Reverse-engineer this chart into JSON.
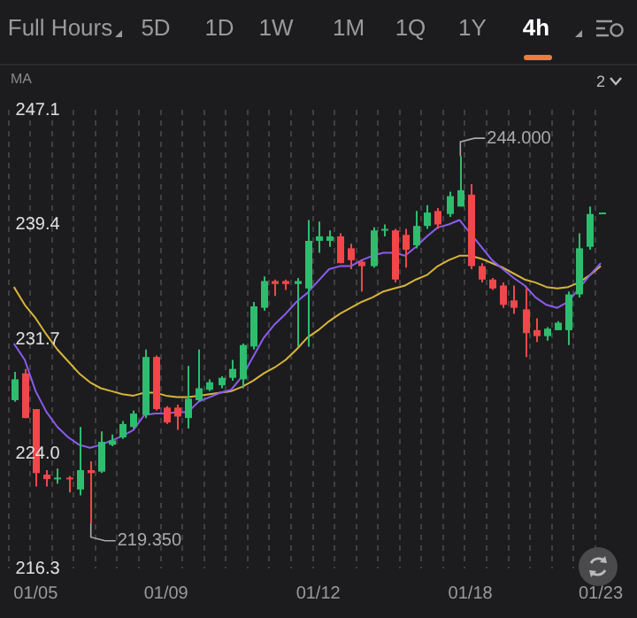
{
  "chart_data": {
    "type": "candlestick",
    "annotations": [
      "Full Hours",
      "5D",
      "1D",
      "1W",
      "1M",
      "1Q",
      "1Y",
      "4h",
      "MA",
      "2",
      "244.000",
      "219.350"
    ],
    "categories": [
      null,
      null,
      "01/05",
      null,
      null,
      null,
      null,
      null,
      null,
      null,
      null,
      null,
      null,
      null,
      "01/09",
      null,
      null,
      null,
      null,
      null,
      null,
      null,
      null,
      null,
      null,
      null,
      null,
      null,
      "01/12",
      null,
      null,
      null,
      null,
      null,
      null,
      null,
      null,
      null,
      null,
      null,
      null,
      null,
      "01/18",
      null,
      null,
      null,
      null,
      null,
      null,
      null,
      null,
      null,
      null,
      null,
      "01/23"
    ],
    "ohlc": [
      [
        227.6,
        229.5,
        227.5,
        229.0
      ],
      [
        229.4,
        229.7,
        226.4,
        226.4
      ],
      [
        227.0,
        227.0,
        221.8,
        222.7
      ],
      [
        222.6,
        222.9,
        221.8,
        222.3
      ],
      [
        222.3,
        223.0,
        222.0,
        222.4
      ],
      [
        222.4,
        222.5,
        221.4,
        222.3
      ],
      [
        221.6,
        225.8,
        221.2,
        222.9
      ],
      [
        222.9,
        223.5,
        219.35,
        222.7
      ],
      [
        222.8,
        225.5,
        222.7,
        224.8
      ],
      [
        224.6,
        225.3,
        224.5,
        224.9
      ],
      [
        225.1,
        226.2,
        225.0,
        226.0
      ],
      [
        225.8,
        226.9,
        225.7,
        226.7
      ],
      [
        226.6,
        231.0,
        226.4,
        230.5
      ],
      [
        230.5,
        230.6,
        226.9,
        227.0
      ],
      [
        227.1,
        227.2,
        226.0,
        226.1
      ],
      [
        227.1,
        227.3,
        225.6,
        226.5
      ],
      [
        226.4,
        229.9,
        225.7,
        227.7
      ],
      [
        227.6,
        231.0,
        227.5,
        228.4
      ],
      [
        228.3,
        229.0,
        228.2,
        228.8
      ],
      [
        228.6,
        229.2,
        228.4,
        229.1
      ],
      [
        229.1,
        230.3,
        228.9,
        229.7
      ],
      [
        229.0,
        231.4,
        228.4,
        231.3
      ],
      [
        231.2,
        234.2,
        231.0,
        233.9
      ],
      [
        233.8,
        235.9,
        233.6,
        235.6
      ],
      [
        235.6,
        235.7,
        234.6,
        235.4
      ],
      [
        235.6,
        235.7,
        235.0,
        235.4
      ],
      [
        235.4,
        235.8,
        231.2,
        235.6
      ],
      [
        235.1,
        239.7,
        231.2,
        238.3
      ],
      [
        238.3,
        239.6,
        237.5,
        238.6
      ],
      [
        238.3,
        239.0,
        237.9,
        238.6
      ],
      [
        238.6,
        238.8,
        236.8,
        236.8
      ],
      [
        237.8,
        238.1,
        236.4,
        237.0
      ],
      [
        236.9,
        237.0,
        234.9,
        236.6
      ],
      [
        236.6,
        239.2,
        236.5,
        239.0
      ],
      [
        239.0,
        239.4,
        238.6,
        239.1
      ],
      [
        239.0,
        239.1,
        235.5,
        235.7
      ],
      [
        238.7,
        239.1,
        236.5,
        237.7
      ],
      [
        238.0,
        240.3,
        237.8,
        239.3
      ],
      [
        239.3,
        240.7,
        239.1,
        240.2
      ],
      [
        240.3,
        240.5,
        239.1,
        239.4
      ],
      [
        240.1,
        241.6,
        239.9,
        241.3
      ],
      [
        240.6,
        244.0,
        240.6,
        241.7
      ],
      [
        241.4,
        242.1,
        236.4,
        236.6
      ],
      [
        236.6,
        236.8,
        235.5,
        235.7
      ],
      [
        235.7,
        235.8,
        235.0,
        235.1
      ],
      [
        235.3,
        235.5,
        233.8,
        234.0
      ],
      [
        234.3,
        235.3,
        233.4,
        233.8
      ],
      [
        233.7,
        235.1,
        230.5,
        232.1
      ],
      [
        232.3,
        233.1,
        231.5,
        231.9
      ],
      [
        231.9,
        232.5,
        231.6,
        232.4
      ],
      [
        232.3,
        232.9,
        232.3,
        232.8
      ],
      [
        232.3,
        234.9,
        231.3,
        234.7
      ],
      [
        234.7,
        238.8,
        234.5,
        237.8
      ],
      [
        237.9,
        240.6,
        237.7,
        240.1
      ],
      [
        240.1,
        240.2,
        240.1,
        240.2
      ]
    ],
    "colors": [
      "#2dbd6e",
      "#f0474a",
      "#f0474a",
      "#f0474a",
      "#2dbd6e",
      "#f0474a",
      "#2dbd6e",
      "#f0474a",
      "#2dbd6e",
      "#2dbd6e",
      "#2dbd6e",
      "#2dbd6e",
      "#2dbd6e",
      "#f0474a",
      "#f0474a",
      "#f0474a",
      "#2dbd6e",
      "#2dbd6e",
      "#2dbd6e",
      "#2dbd6e",
      "#2dbd6e",
      "#2dbd6e",
      "#2dbd6e",
      "#2dbd6e",
      "#f0474a",
      "#f0474a",
      "#2dbd6e",
      "#2dbd6e",
      "#2dbd6e",
      "#2dbd6e",
      "#f0474a",
      "#f0474a",
      "#f0474a",
      "#2dbd6e",
      "#2dbd6e",
      "#f0474a",
      "#f0474a",
      "#2dbd6e",
      "#2dbd6e",
      "#f0474a",
      "#2dbd6e",
      "#2dbd6e",
      "#f0474a",
      "#f0474a",
      "#f0474a",
      "#f0474a",
      "#f0474a",
      "#f0474a",
      "#f0474a",
      "#2dbd6e",
      "#2dbd6e",
      "#2dbd6e",
      "#2dbd6e",
      "#2dbd6e",
      "#2dbd6e"
    ],
    "series": [
      {
        "type": "line",
        "color": "#8a5cf0",
        "values": [
          231.4,
          230.3,
          228.2,
          226.8,
          225.8,
          225.1,
          224.6,
          224.4,
          224.6,
          224.9,
          225.2,
          225.6,
          226.6,
          226.7,
          226.7,
          226.8,
          226.8,
          227.5,
          227.8,
          228.1,
          228.3,
          229.2,
          230.5,
          231.8,
          232.7,
          233.4,
          234.2,
          234.8,
          235.6,
          236.4,
          236.6,
          236.6,
          237.0,
          237.3,
          237.5,
          237.5,
          237.3,
          237.9,
          238.6,
          239.2,
          239.4,
          239.7,
          238.8,
          237.9,
          237.0,
          236.4,
          235.8,
          235.3,
          234.5,
          234.0,
          233.8,
          234.2,
          235.1,
          236.0,
          236.8
        ]
      },
      {
        "type": "line",
        "color": "#d9b43a",
        "values": [
          235.2,
          234.0,
          233.1,
          232.0,
          231.0,
          230.2,
          229.4,
          228.8,
          228.4,
          228.2,
          228.0,
          227.9,
          228.1,
          228.1,
          227.9,
          227.8,
          227.8,
          227.9,
          228.0,
          228.1,
          228.2,
          228.5,
          228.9,
          229.4,
          229.8,
          230.3,
          231.0,
          231.8,
          232.3,
          232.9,
          233.4,
          233.8,
          234.2,
          234.5,
          234.9,
          235.1,
          235.3,
          235.7,
          236.0,
          236.6,
          237.0,
          237.3,
          237.3,
          237.1,
          236.8,
          236.5,
          236.1,
          235.7,
          235.5,
          235.2,
          235.1,
          235.2,
          235.5,
          236.0,
          236.6
        ]
      }
    ],
    "ylim": [
      216.3,
      247.1
    ],
    "yticks": [
      216.3,
      {
        "value": 224.0,
        "label": "224.0"
      },
      231.7,
      239.4,
      247.1
    ],
    "grid": "x",
    "legend": false,
    "marker": "none",
    "line_style": "solid"
  }
}
